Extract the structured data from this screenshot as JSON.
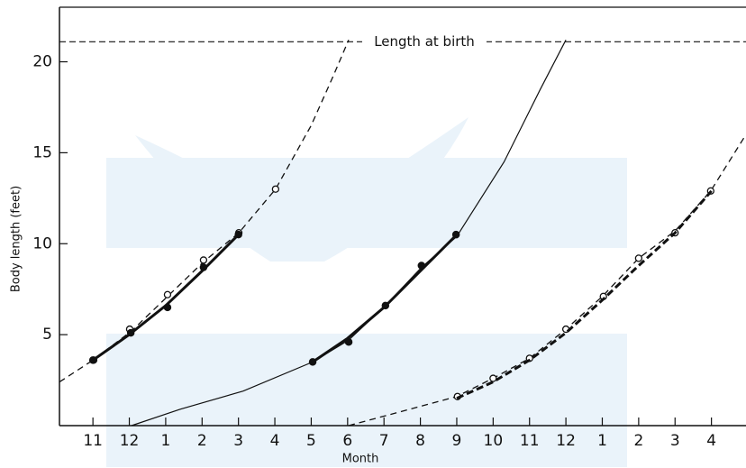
{
  "chart_data": {
    "type": "line",
    "xlabel": "Month",
    "ylabel": "Body length (feet)",
    "xlim": [
      -0.92,
      17.95
    ],
    "ylim": [
      0,
      23
    ],
    "yticks": [
      5,
      10,
      15,
      20
    ],
    "xticks": [
      {
        "value": 0,
        "label": "11"
      },
      {
        "value": 1,
        "label": "12"
      },
      {
        "value": 2,
        "label": "1"
      },
      {
        "value": 3,
        "label": "2"
      },
      {
        "value": 4,
        "label": "3"
      },
      {
        "value": 5,
        "label": "4"
      },
      {
        "value": 6,
        "label": "5"
      },
      {
        "value": 7,
        "label": "6"
      },
      {
        "value": 8,
        "label": "7"
      },
      {
        "value": 9,
        "label": "8"
      },
      {
        "value": 10,
        "label": "9"
      },
      {
        "value": 11,
        "label": "10"
      },
      {
        "value": 12,
        "label": "11"
      },
      {
        "value": 13,
        "label": "12"
      },
      {
        "value": 14,
        "label": "1"
      },
      {
        "value": 15,
        "label": "2"
      },
      {
        "value": 16,
        "label": "3"
      },
      {
        "value": 17,
        "label": "4"
      }
    ],
    "annotation": {
      "text": "Length at birth",
      "y": 21.1
    },
    "series": [
      {
        "color": "#111",
        "dash": true,
        "width": 1.3,
        "marker": "none",
        "x": [
          -0.92,
          0,
          1.06,
          2.05,
          3.04,
          4.01,
          5.02,
          6.0,
          6.6,
          7.03
        ],
        "values": [
          2.4,
          3.6,
          5.2,
          7.1,
          9.0,
          10.6,
          13.0,
          16.5,
          19.2,
          21.2
        ]
      },
      {
        "color": "#111",
        "dash": false,
        "width": 0,
        "marker": "open",
        "x": [
          0.02,
          1.01,
          2.05,
          3.04,
          4.01,
          5.02
        ],
        "values": [
          3.6,
          5.3,
          7.2,
          9.1,
          10.6,
          13.0
        ]
      },
      {
        "color": "#111",
        "dash": false,
        "width": 0,
        "marker": "filled",
        "x": [
          0,
          1.04,
          2.05,
          3.04,
          4.0
        ],
        "values": [
          3.6,
          5.1,
          6.5,
          8.7,
          10.5
        ]
      },
      {
        "color": "#111",
        "dash": false,
        "width": 3,
        "marker": "none",
        "x": [
          0,
          1,
          2,
          3,
          4.05
        ],
        "values": [
          3.6,
          5.0,
          6.6,
          8.5,
          10.6
        ]
      },
      {
        "color": "#111",
        "dash": false,
        "width": 1.2,
        "marker": "none",
        "x": [
          1.06,
          2.4,
          4.13,
          6.04,
          7.03,
          8.04,
          9.03,
          10.0,
          11.3,
          12.3,
          13.0
        ],
        "values": [
          0,
          0.9,
          1.9,
          3.5,
          4.7,
          6.6,
          8.7,
          10.4,
          14.5,
          18.5,
          21.2
        ]
      },
      {
        "color": "#111",
        "dash": false,
        "width": 3,
        "marker": "none",
        "x": [
          6.04,
          7,
          8,
          9,
          10
        ],
        "values": [
          3.5,
          4.8,
          6.5,
          8.5,
          10.5
        ]
      },
      {
        "color": "#111",
        "dash": false,
        "width": 0,
        "marker": "filled",
        "x": [
          6.04,
          7.03,
          8.04,
          9.03,
          9.98
        ],
        "values": [
          3.5,
          4.6,
          6.6,
          8.8,
          10.5
        ]
      },
      {
        "color": "#111",
        "dash": true,
        "width": 1.3,
        "marker": "none",
        "x": [
          7.03,
          9.08,
          10.0,
          11.0,
          12.0,
          13.0,
          14.0,
          15.0,
          16.0,
          16.98,
          17.95
        ],
        "values": [
          0,
          1.1,
          1.6,
          2.6,
          3.7,
          5.3,
          7.1,
          9.2,
          10.7,
          12.9,
          16.0
        ]
      },
      {
        "color": "#111",
        "dash": false,
        "width": 0,
        "marker": "open",
        "x": [
          10.02,
          11.0,
          12.0,
          13.0,
          14.03,
          15.0,
          16.0,
          16.98
        ],
        "values": [
          1.6,
          2.6,
          3.7,
          5.3,
          7.1,
          9.2,
          10.6,
          12.9
        ]
      },
      {
        "color": "#111",
        "dash": true,
        "width": 3,
        "marker": "none",
        "x": [
          10,
          11,
          12,
          13,
          14,
          15,
          16,
          17
        ],
        "values": [
          1.5,
          2.4,
          3.6,
          5.1,
          6.9,
          8.8,
          10.6,
          12.9
        ]
      }
    ]
  }
}
